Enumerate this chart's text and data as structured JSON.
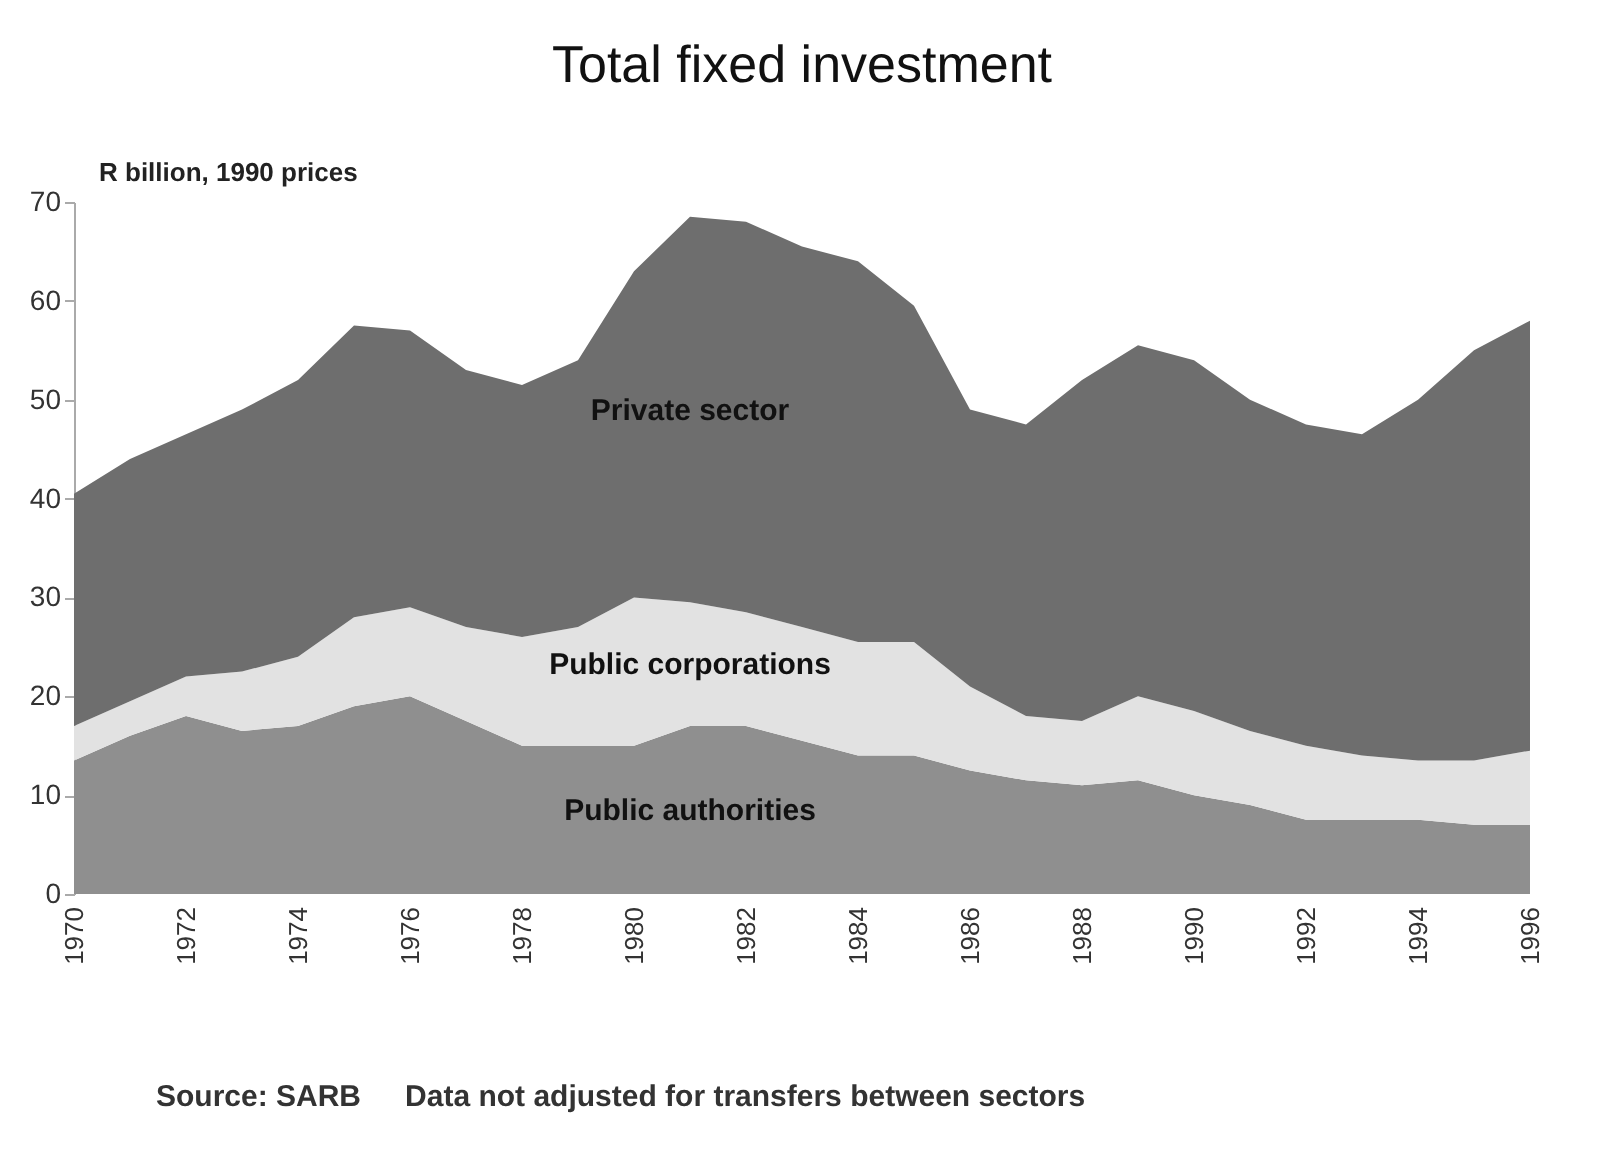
{
  "chart_data": {
    "type": "area",
    "title": "Total fixed investment",
    "ylabel": "R billion, 1990 prices",
    "stacked": true,
    "x": [
      1970,
      1971,
      1972,
      1973,
      1974,
      1975,
      1976,
      1977,
      1978,
      1979,
      1980,
      1981,
      1982,
      1983,
      1984,
      1985,
      1986,
      1987,
      1988,
      1989,
      1990,
      1991,
      1992,
      1993,
      1994,
      1995,
      1996
    ],
    "xlim": [
      1970,
      1996
    ],
    "xticks": [
      1970,
      1972,
      1974,
      1976,
      1978,
      1980,
      1982,
      1984,
      1986,
      1988,
      1990,
      1992,
      1994,
      1996
    ],
    "ylim": [
      0,
      70
    ],
    "yticks": [
      0,
      10,
      20,
      30,
      40,
      50,
      60,
      70
    ],
    "grid": false,
    "series": [
      {
        "name": "Public authorities",
        "color": "#8f8f8f",
        "values": [
          13.5,
          16,
          18,
          16.5,
          17,
          19,
          20,
          17.5,
          15,
          15,
          15,
          17,
          17,
          15.5,
          14,
          14,
          12.5,
          11.5,
          11,
          11.5,
          10,
          9,
          7.5,
          7.5,
          7.5,
          7,
          7
        ]
      },
      {
        "name": "Public corporations",
        "color": "#e2e2e2",
        "values": [
          3.5,
          3.5,
          4,
          6,
          7,
          9,
          9,
          9.5,
          11,
          12,
          15,
          12.5,
          11.5,
          11.5,
          11.5,
          11.5,
          8.5,
          6.5,
          6.5,
          8.5,
          8.5,
          7.5,
          7.5,
          6.5,
          6,
          6.5,
          7.5
        ]
      },
      {
        "name": "Private sector",
        "color": "#6e6e6e",
        "values": [
          23.5,
          24.5,
          24.5,
          26.5,
          28,
          29.5,
          28,
          26,
          25.5,
          27,
          33,
          39,
          39.5,
          38.5,
          38.5,
          34,
          28,
          29.5,
          34.5,
          35.5,
          35.5,
          33.5,
          32.5,
          32.5,
          36.5,
          41.5,
          43.5
        ]
      }
    ],
    "annotations": [
      "Source: SARB",
      "Data not adjusted for transfers between sectors"
    ]
  }
}
